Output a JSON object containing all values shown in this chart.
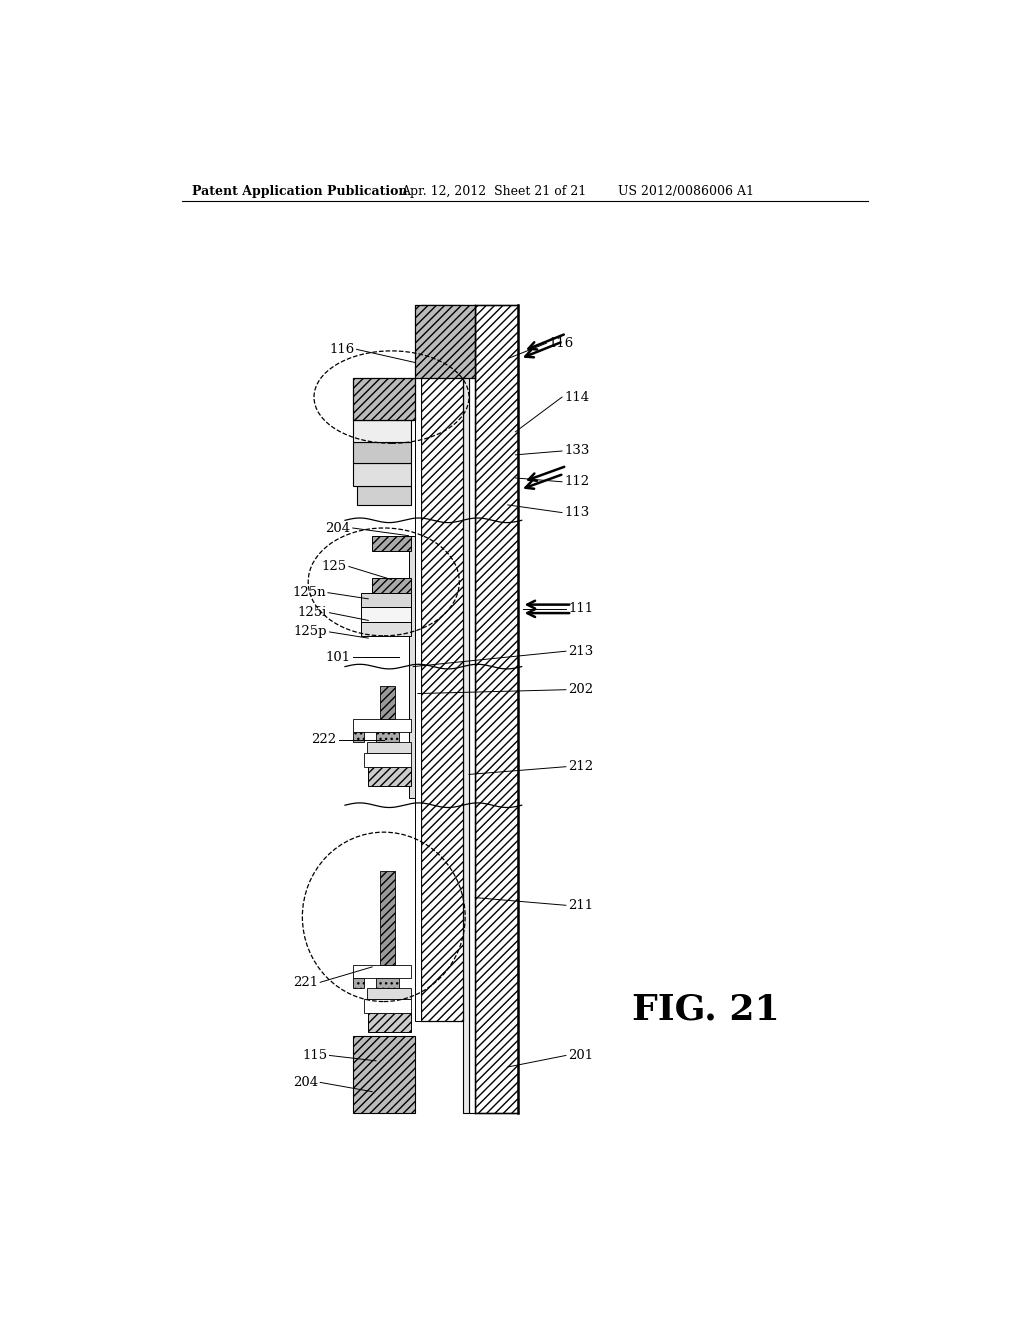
{
  "header_left": "Patent Application Publication",
  "header_mid": "Apr. 12, 2012  Sheet 21 of 21",
  "header_right": "US 2012/0086006 A1",
  "fig_label": "FIG. 21",
  "bg_color": "#ffffff"
}
